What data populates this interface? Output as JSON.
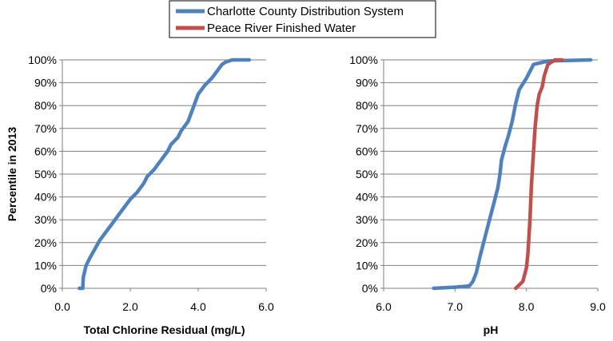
{
  "chart_data": [
    {
      "type": "line",
      "xlabel": "Total Chlorine Residual (mg/L)",
      "ylabel": "Percentile in 2013",
      "xlim": [
        0,
        6
      ],
      "ylim": [
        0,
        100
      ],
      "xticks": [
        "0.0",
        "2.0",
        "4.0",
        "6.0"
      ],
      "yticks": [
        "0%",
        "10%",
        "20%",
        "30%",
        "40%",
        "50%",
        "60%",
        "70%",
        "80%",
        "90%",
        "100%"
      ],
      "grid": "horizontal",
      "series": [
        {
          "name": "Charlotte County Distribution System",
          "color": "#4f81bd",
          "x": [
            0.5,
            0.6,
            0.62,
            0.7,
            0.8,
            0.95,
            1.1,
            1.3,
            1.5,
            1.6,
            1.8,
            2.0,
            2.2,
            2.4,
            2.5,
            2.7,
            2.9,
            3.1,
            3.2,
            3.4,
            3.5,
            3.7,
            3.8,
            3.9,
            4.0,
            4.2,
            4.4,
            4.5,
            4.6,
            4.7,
            4.8,
            5.0,
            5.5
          ],
          "y": [
            0,
            0,
            5,
            10,
            13,
            17,
            21,
            25,
            29,
            31,
            35,
            39,
            42,
            46,
            49,
            52,
            56,
            60,
            63,
            66,
            69,
            73,
            77,
            81,
            85,
            89,
            92,
            94,
            96,
            98,
            99,
            100,
            100
          ]
        }
      ]
    },
    {
      "type": "line",
      "xlabel": "pH",
      "ylabel": "",
      "xlim": [
        6,
        9
      ],
      "ylim": [
        0,
        100
      ],
      "xticks": [
        "6.0",
        "7.0",
        "8.0",
        "9.0"
      ],
      "yticks": [
        "0%",
        "10%",
        "20%",
        "30%",
        "40%",
        "50%",
        "60%",
        "70%",
        "80%",
        "90%",
        "100%"
      ],
      "grid": "horizontal",
      "series": [
        {
          "name": "Charlotte County Distribution System",
          "color": "#4f81bd",
          "x": [
            6.7,
            7.0,
            7.2,
            7.25,
            7.3,
            7.35,
            7.4,
            7.45,
            7.5,
            7.55,
            7.6,
            7.63,
            7.65,
            7.7,
            7.75,
            7.8,
            7.85,
            7.9,
            8.0,
            8.05,
            8.1,
            8.3,
            8.9
          ],
          "y": [
            0,
            0.5,
            1,
            3,
            7,
            14,
            20,
            26,
            32,
            38,
            44,
            50,
            56,
            62,
            67,
            73,
            81,
            87,
            92,
            95,
            98,
            99.5,
            100
          ]
        },
        {
          "name": "Peace River Finished Water",
          "color": "#c0504d",
          "x": [
            7.85,
            7.95,
            8.0,
            8.02,
            8.05,
            8.07,
            8.1,
            8.12,
            8.15,
            8.18,
            8.22,
            8.25,
            8.3,
            8.4,
            8.5
          ],
          "y": [
            0,
            3,
            9,
            15,
            30,
            45,
            60,
            70,
            80,
            85,
            88,
            93,
            98,
            100,
            100
          ]
        }
      ]
    }
  ],
  "legend": [
    {
      "name": "Charlotte County Distribution System",
      "color": "#4f81bd"
    },
    {
      "name": "Peace River Finished Water",
      "color": "#c0504d"
    }
  ]
}
